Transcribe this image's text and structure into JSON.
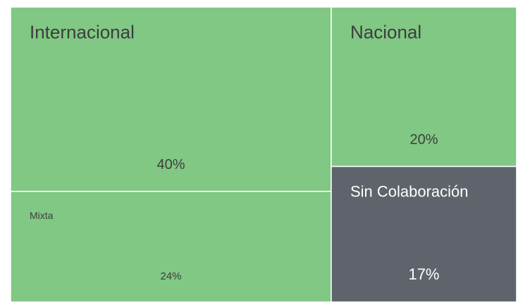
{
  "chart_data": {
    "type": "treemap",
    "categories": [
      "Internacional",
      "Mixta",
      "Nacional",
      "Sin Colaboración"
    ],
    "values": [
      40,
      24,
      20,
      17
    ],
    "value_labels": [
      "40%",
      "24%",
      "20%",
      "17%"
    ],
    "colors": [
      "#80c883",
      "#80c883",
      "#80c883",
      "#5f636b"
    ]
  }
}
